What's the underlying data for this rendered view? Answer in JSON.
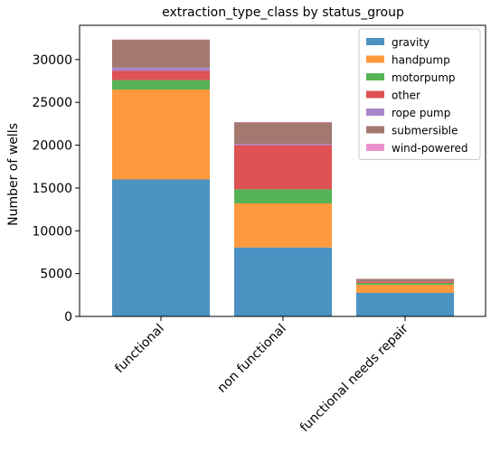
{
  "chart_data": {
    "type": "bar",
    "stacked": true,
    "title": "extraction_type_class by status_group",
    "xlabel": "",
    "ylabel": "Number of wells",
    "ylim": [
      0,
      34000
    ],
    "yticks": [
      0,
      5000,
      10000,
      15000,
      20000,
      25000,
      30000
    ],
    "categories": [
      "functional",
      "non functional",
      "functional needs repair"
    ],
    "legend_position": "top-right",
    "grid": false,
    "series": [
      {
        "name": "gravity",
        "color": "#1f77b4",
        "values": [
          16000,
          8050,
          2750
        ]
      },
      {
        "name": "handpump",
        "color": "#ff7f0e",
        "values": [
          10500,
          5150,
          950
        ]
      },
      {
        "name": "motorpump",
        "color": "#2ca02c",
        "values": [
          1100,
          1650,
          200
        ]
      },
      {
        "name": "other",
        "color": "#d62728",
        "values": [
          1100,
          5150,
          150
        ]
      },
      {
        "name": "rope pump",
        "color": "#9467bd",
        "values": [
          350,
          150,
          30
        ]
      },
      {
        "name": "submersible",
        "color": "#8c564b",
        "values": [
          3250,
          2500,
          300
        ]
      },
      {
        "name": "wind-powered",
        "color": "#e377c2",
        "values": [
          50,
          50,
          10
        ]
      }
    ]
  }
}
